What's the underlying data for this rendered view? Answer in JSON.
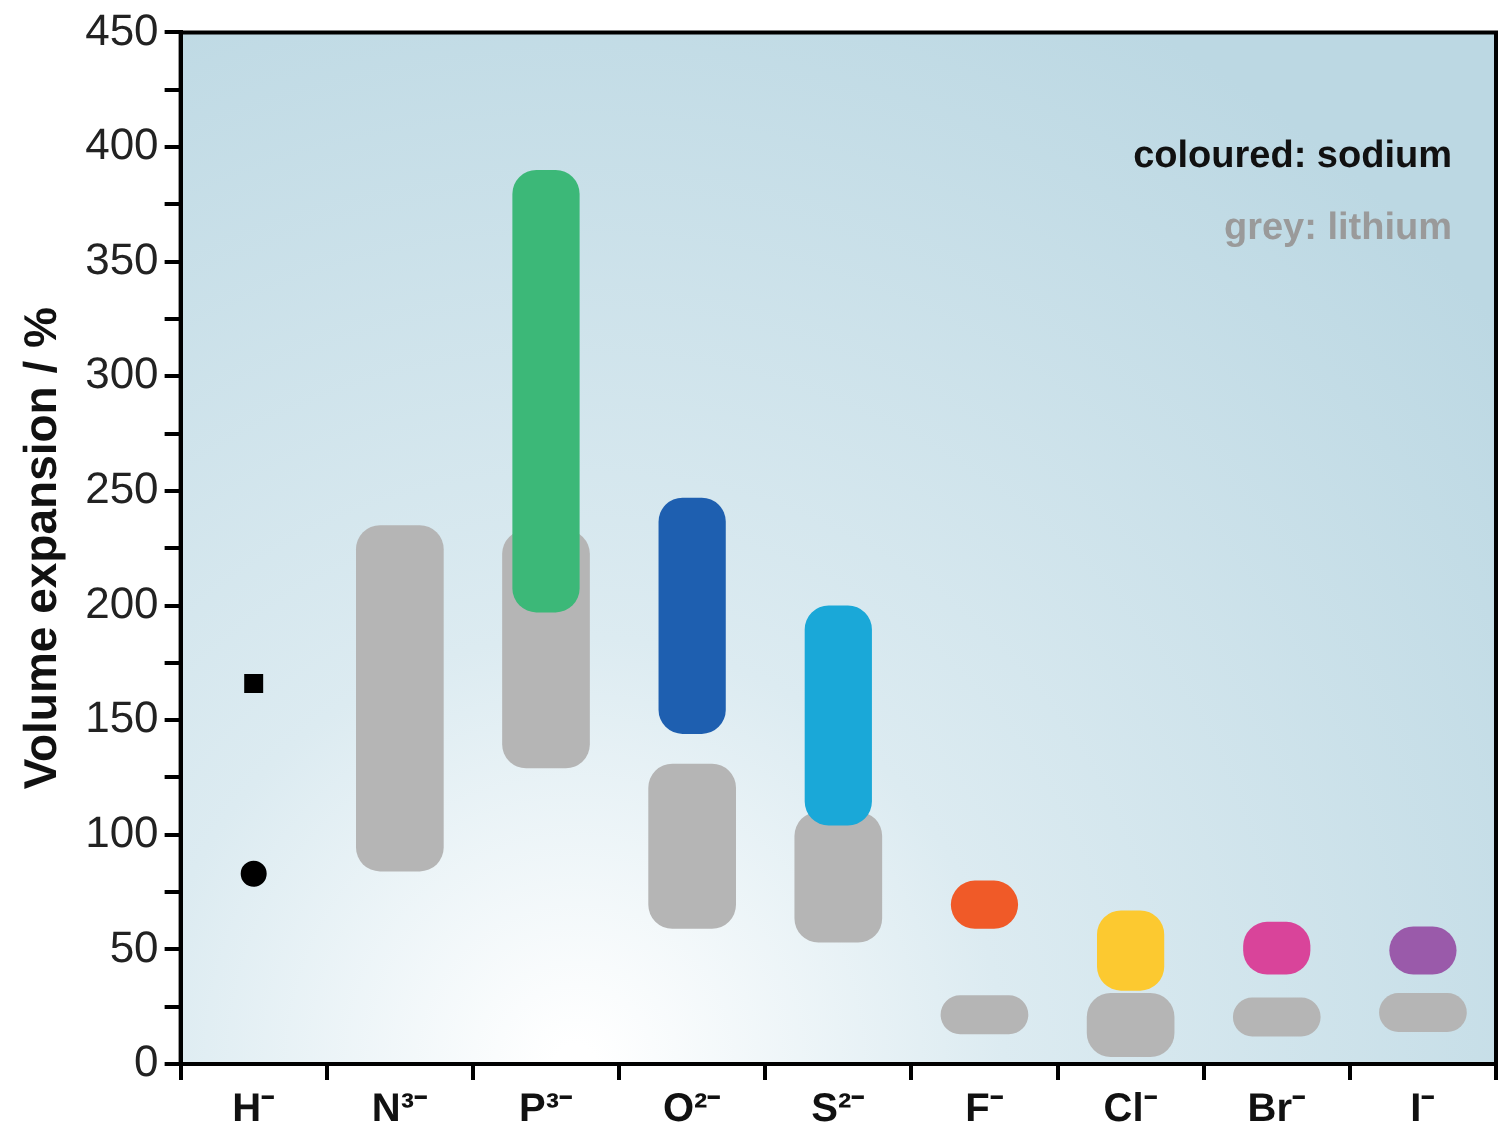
{
  "chart_data": {
    "type": "bar",
    "ylabel": "Volume expansion / %",
    "categories": [
      "H⁻",
      "N³⁻",
      "P³⁻",
      "O²⁻",
      "S²⁻",
      "F⁻",
      "Cl⁻",
      "Br⁻",
      "I⁻"
    ],
    "series": [
      {
        "color": "#b5b5b5",
        "base": [
          null,
          84,
          129,
          59,
          53,
          13,
          3,
          12,
          14
        ],
        "values": [
          null,
          151,
          104,
          72,
          57,
          17,
          28,
          17,
          17
        ]
      },
      {
        "colors": [
          null,
          null,
          "#3cb878",
          "#1e5fb0",
          "#1aa8d8",
          "#f05a28",
          "#fcc930",
          "#d9449a",
          "#9a5aaa"
        ],
        "base": [
          null,
          null,
          197,
          144,
          104,
          59,
          32,
          39,
          39
        ],
        "values": [
          null,
          null,
          193,
          103,
          96,
          21,
          35,
          23,
          21
        ]
      },
      {
        "type": "scatter",
        "marker": "square",
        "color": "#000000",
        "x": [
          "H⁻"
        ],
        "values": [
          166
        ]
      },
      {
        "type": "scatter",
        "marker": "circle",
        "color": "#000000",
        "x": [
          "H⁻"
        ],
        "values": [
          83
        ]
      }
    ],
    "ylim": [
      0,
      450
    ],
    "yticks": [
      0,
      {
        "value": 25,
        "label": null
      },
      50,
      {
        "value": 75,
        "label": null
      },
      100,
      {
        "value": 125,
        "label": null
      },
      150,
      {
        "value": 175,
        "label": null
      },
      200,
      {
        "value": 225,
        "label": null
      },
      250,
      {
        "value": 275,
        "label": null
      },
      300,
      {
        "value": 325,
        "label": null
      },
      350,
      {
        "value": 375,
        "label": null
      },
      400,
      {
        "value": 425,
        "label": null
      },
      450
    ],
    "annotations": [
      "coloured: sodium",
      "grey: lithium"
    ]
  }
}
